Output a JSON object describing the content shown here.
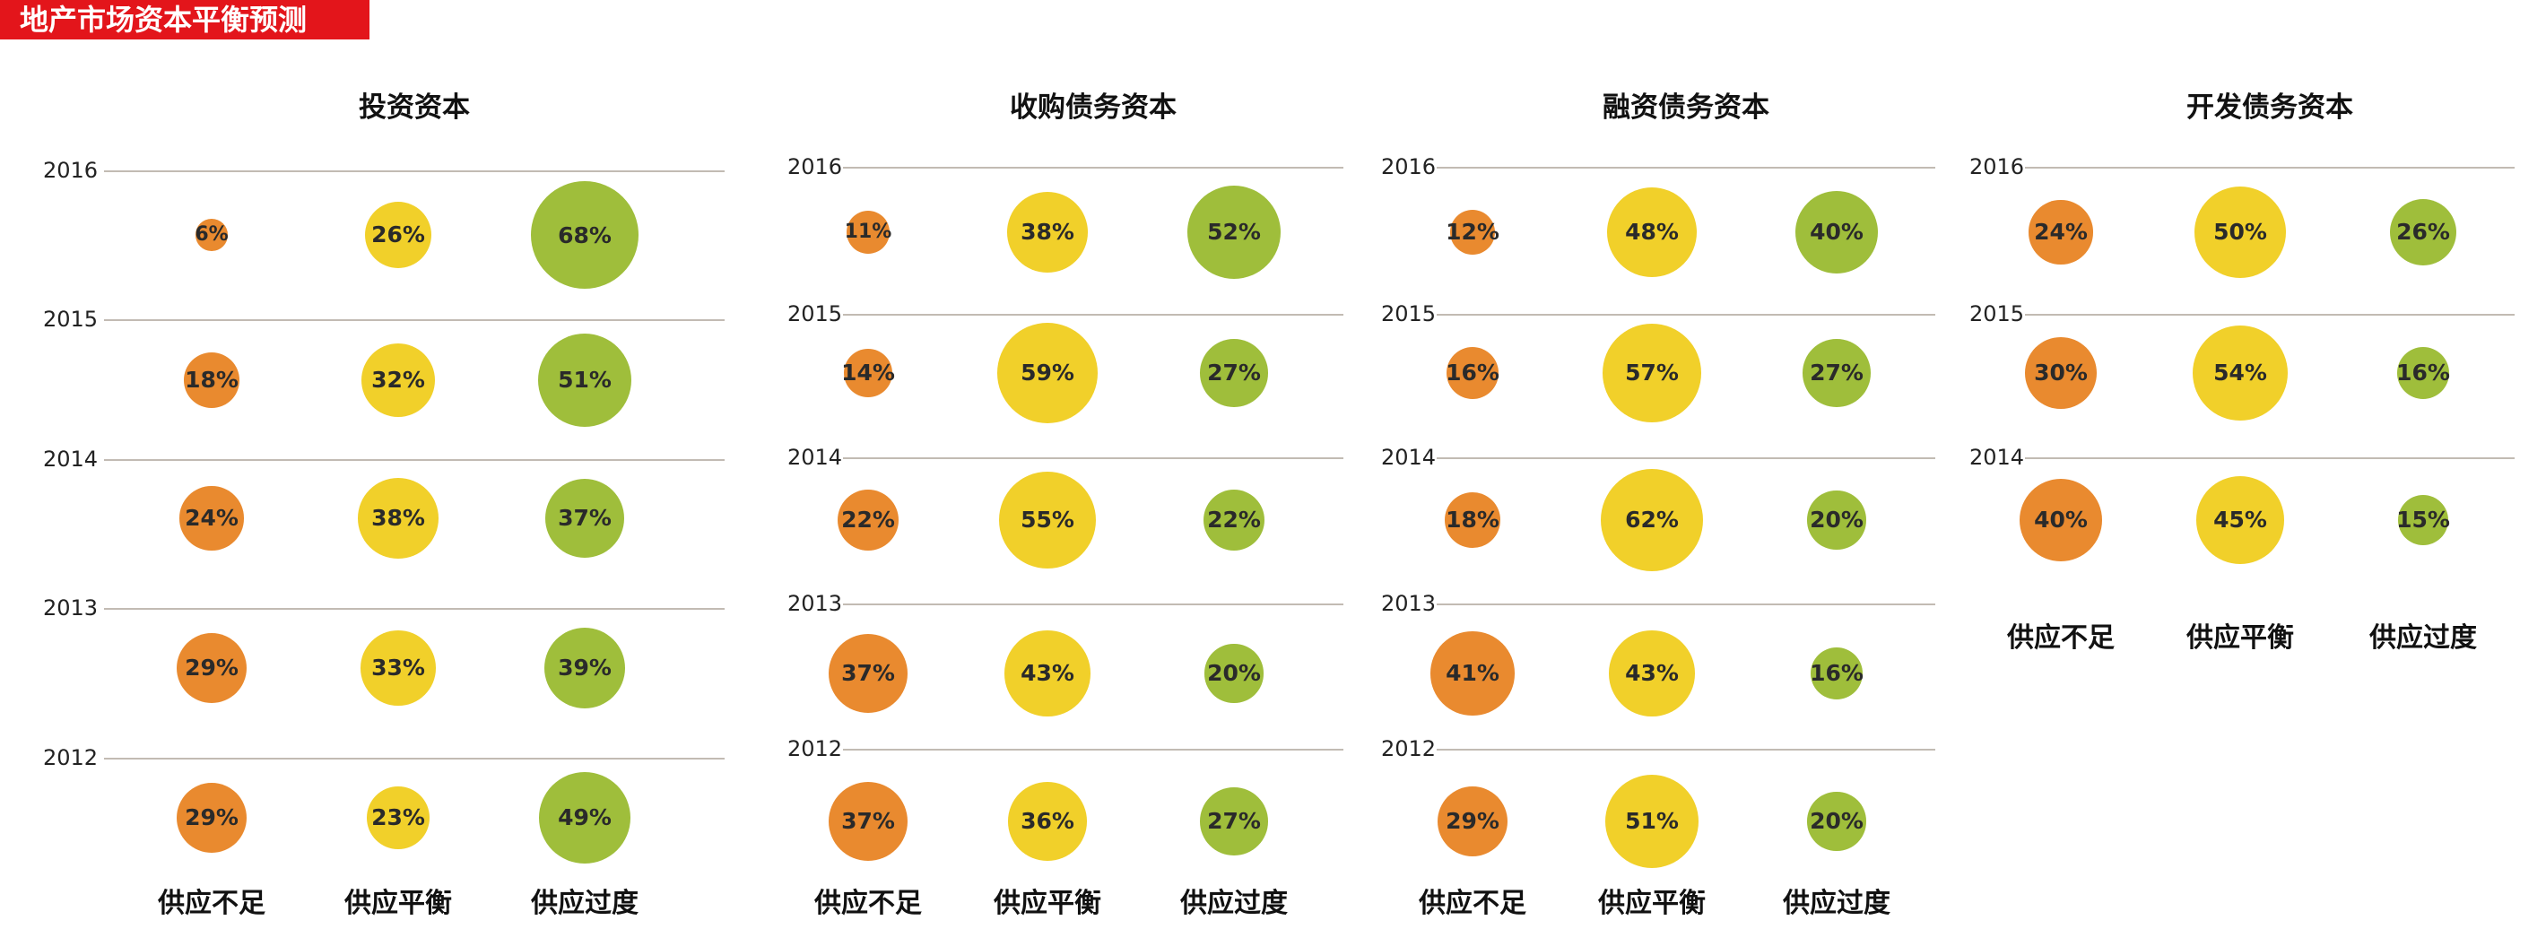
{
  "header": {
    "title": "地产市场资本平衡预测"
  },
  "categories": [
    "供应不足",
    "供应平衡",
    "供应过度"
  ],
  "colors": {
    "title_bg": "#e3151b",
    "undersupply": "#e98a2f",
    "balanced": "#f1d02a",
    "oversupply": "#9fbe3b",
    "gridline": "#c2bbb3"
  },
  "chart_data": [
    {
      "type": "bubble",
      "title": "投资资本",
      "categories": [
        "供应不足",
        "供应平衡",
        "供应过度"
      ],
      "rows": [
        {
          "year": "2016",
          "values": [
            "6%",
            "26%",
            "68%"
          ]
        },
        {
          "year": "2015",
          "values": [
            "18%",
            "32%",
            "51%"
          ]
        },
        {
          "year": "2014",
          "values": [
            "24%",
            "38%",
            "37%"
          ]
        },
        {
          "year": "2013",
          "values": [
            "29%",
            "33%",
            "39%"
          ]
        },
        {
          "year": "2012",
          "values": [
            "29%",
            "23%",
            "49%"
          ]
        }
      ]
    },
    {
      "type": "bubble",
      "title": "收购债务资本",
      "categories": [
        "供应不足",
        "供应平衡",
        "供应过度"
      ],
      "rows": [
        {
          "year": "2016",
          "values": [
            "11%",
            "38%",
            "52%"
          ]
        },
        {
          "year": "2015",
          "values": [
            "14%",
            "59%",
            "27%"
          ]
        },
        {
          "year": "2014",
          "values": [
            "22%",
            "55%",
            "22%"
          ]
        },
        {
          "year": "2013",
          "values": [
            "37%",
            "43%",
            "20%"
          ]
        },
        {
          "year": "2012",
          "values": [
            "37%",
            "36%",
            "27%"
          ]
        }
      ]
    },
    {
      "type": "bubble",
      "title": "融资债务资本",
      "categories": [
        "供应不足",
        "供应平衡",
        "供应过度"
      ],
      "rows": [
        {
          "year": "2016",
          "values": [
            "12%",
            "48%",
            "40%"
          ]
        },
        {
          "year": "2015",
          "values": [
            "16%",
            "57%",
            "27%"
          ]
        },
        {
          "year": "2014",
          "values": [
            "18%",
            "62%",
            "20%"
          ]
        },
        {
          "year": "2013",
          "values": [
            "41%",
            "43%",
            "16%"
          ]
        },
        {
          "year": "2012",
          "values": [
            "29%",
            "51%",
            "20%"
          ]
        }
      ]
    },
    {
      "type": "bubble",
      "title": "开发债务资本",
      "categories": [
        "供应不足",
        "供应平衡",
        "供应过度"
      ],
      "rows": [
        {
          "year": "2016",
          "values": [
            "24%",
            "50%",
            "26%"
          ]
        },
        {
          "year": "2015",
          "values": [
            "30%",
            "54%",
            "16%"
          ]
        },
        {
          "year": "2014",
          "values": [
            "40%",
            "45%",
            "15%"
          ]
        }
      ]
    }
  ]
}
